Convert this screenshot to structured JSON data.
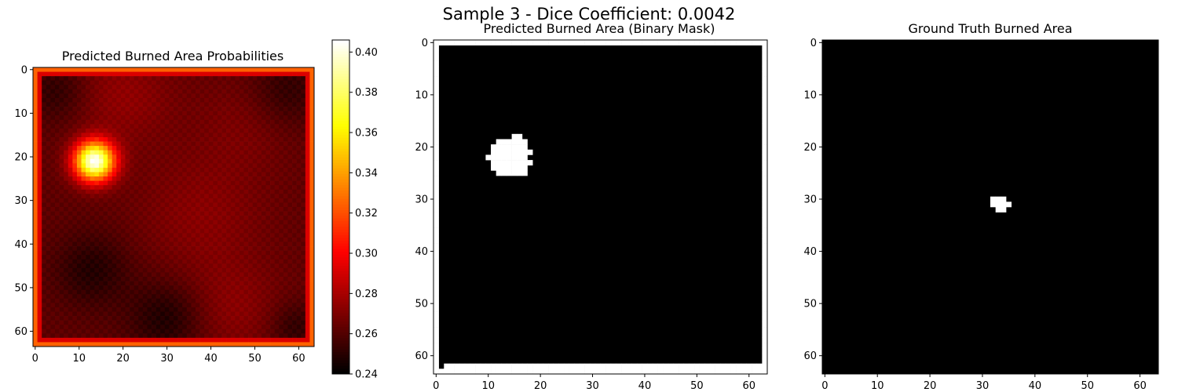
{
  "suptitle": "Sample 3 - Dice Coefficient: 0.0042",
  "colors": {
    "mask_on": "#ffffff",
    "mask_off": "#000000"
  },
  "chart_data": [
    {
      "type": "heatmap",
      "title": "Predicted Burned Area Probabilities",
      "colormap": "hot",
      "grid_size": [
        64,
        64
      ],
      "xlim": [
        -0.5,
        63.5
      ],
      "ylim": [
        63.5,
        -0.5
      ],
      "xticks": [
        0,
        10,
        20,
        30,
        40,
        50,
        60
      ],
      "yticks": [
        0,
        10,
        20,
        30,
        40,
        50,
        60
      ],
      "colorbar": {
        "vmin": 0.24,
        "vmax": 0.406,
        "ticks": [
          0.24,
          0.26,
          0.28,
          0.3,
          0.32,
          0.34,
          0.36,
          0.38,
          0.4
        ],
        "tick_labels": [
          "0.24",
          "0.26",
          "0.28",
          "0.30",
          "0.32",
          "0.34",
          "0.36",
          "0.38",
          "0.40"
        ]
      },
      "border_value": 0.325,
      "inner_border_value": 0.292,
      "base_value": 0.262,
      "hotspots": [
        {
          "row": 21,
          "col": 13.5,
          "peak": 0.405,
          "radius": 3.2
        }
      ],
      "field_regions": [
        {
          "row": 6,
          "col": 20,
          "delta": 0.012,
          "radius": 8
        },
        {
          "row": 33,
          "col": 38,
          "delta": 0.01,
          "radius": 10
        },
        {
          "row": 55,
          "col": 45,
          "delta": 0.01,
          "radius": 8
        },
        {
          "row": 12,
          "col": 48,
          "delta": 0.007,
          "radius": 8
        },
        {
          "row": 57,
          "col": 30,
          "delta": -0.016,
          "radius": 6
        },
        {
          "row": 46,
          "col": 13,
          "delta": -0.014,
          "radius": 6
        },
        {
          "row": 5,
          "col": 57,
          "delta": -0.012,
          "radius": 6
        },
        {
          "row": 59,
          "col": 59,
          "delta": -0.012,
          "radius": 4
        },
        {
          "row": 5,
          "col": 5,
          "delta": -0.012,
          "radius": 5
        }
      ]
    },
    {
      "type": "heatmap",
      "title": "Predicted Burned Area (Binary Mask)",
      "grid_size": [
        64,
        64
      ],
      "xlim": [
        -0.5,
        63.5
      ],
      "ylim": [
        63.5,
        -0.5
      ],
      "xticks": [
        0,
        10,
        20,
        30,
        40,
        50,
        60
      ],
      "yticks": [
        0,
        10,
        20,
        30,
        40,
        50,
        60
      ],
      "background_value": 0,
      "positive_rows": [
        {
          "row": 0,
          "cols": [
            0,
            63
          ]
        },
        {
          "row": 18,
          "cols": [
            15,
            16
          ]
        },
        {
          "row": 19,
          "cols": [
            12,
            17
          ]
        },
        {
          "row": 20,
          "cols": [
            11,
            17
          ]
        },
        {
          "row": 21,
          "cols": [
            11,
            18
          ]
        },
        {
          "row": 22,
          "cols": [
            10,
            17
          ]
        },
        {
          "row": 23,
          "cols": [
            11,
            18
          ]
        },
        {
          "row": 24,
          "cols": [
            11,
            17
          ]
        },
        {
          "row": 25,
          "cols": [
            12,
            17
          ]
        },
        {
          "row": 62,
          "cols": [
            2,
            63
          ]
        },
        {
          "row": 63,
          "cols": [
            0,
            63
          ]
        }
      ],
      "positive_cols": [
        {
          "col": 0,
          "rows": [
            0,
            62
          ]
        },
        {
          "col": 63,
          "rows": [
            0,
            63
          ]
        }
      ]
    },
    {
      "type": "heatmap",
      "title": "Ground Truth Burned Area",
      "grid_size": [
        64,
        64
      ],
      "xlim": [
        -0.5,
        63.5
      ],
      "ylim": [
        63.5,
        -0.5
      ],
      "xticks": [
        0,
        10,
        20,
        30,
        40,
        50,
        60
      ],
      "yticks": [
        0,
        10,
        20,
        30,
        40,
        50,
        60
      ],
      "background_value": 0,
      "positive_rows": [
        {
          "row": 30,
          "cols": [
            32,
            34
          ]
        },
        {
          "row": 31,
          "cols": [
            32,
            35
          ]
        },
        {
          "row": 32,
          "cols": [
            33,
            34
          ]
        }
      ],
      "positive_cols": []
    }
  ]
}
